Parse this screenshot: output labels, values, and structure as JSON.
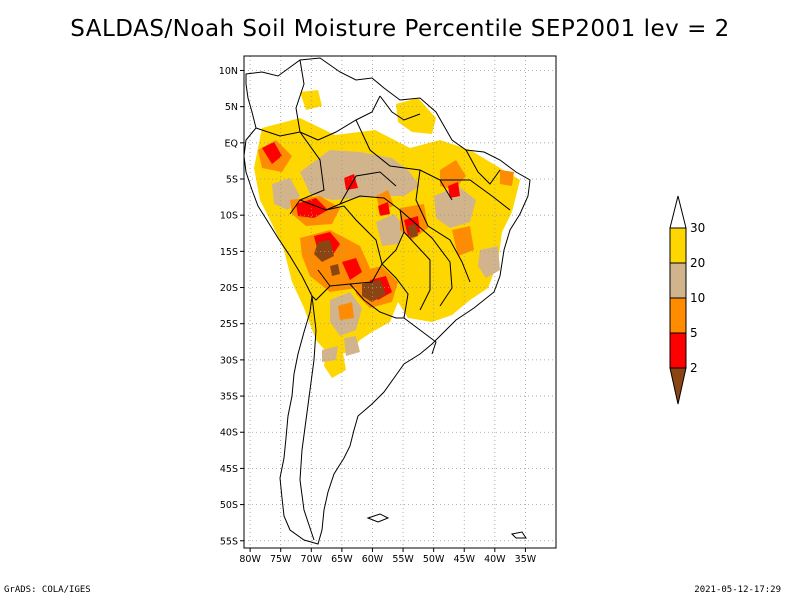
{
  "title": "SALDAS/Noah Soil Moisture Percentile SEP2001 lev = 2",
  "footer": {
    "left": "GrADS: COLA/IGES",
    "right": "2021-05-12-17:29"
  },
  "axes": {
    "lat_labels": [
      "10N",
      "5N",
      "EQ",
      "5S",
      "10S",
      "15S",
      "20S",
      "25S",
      "30S",
      "35S",
      "40S",
      "45S",
      "50S",
      "55S"
    ],
    "lat_values": [
      10,
      5,
      0,
      -5,
      -10,
      -15,
      -20,
      -25,
      -30,
      -35,
      -40,
      -45,
      -50,
      -55
    ],
    "lon_labels": [
      "80W",
      "75W",
      "70W",
      "65W",
      "60W",
      "55W",
      "50W",
      "45W",
      "40W",
      "35W"
    ],
    "lon_values": [
      -80,
      -75,
      -70,
      -65,
      -60,
      -55,
      -50,
      -45,
      -40,
      -35
    ],
    "lat_range": [
      -56,
      12
    ],
    "lon_range": [
      -81,
      -30
    ],
    "grid": "dotted"
  },
  "legend": {
    "orientation": "vertical",
    "placement": "right",
    "labels": [
      "2",
      "5",
      "10",
      "20",
      "30"
    ],
    "colors": [
      "#8B4513",
      "#FF0000",
      "#FF8C00",
      "#D2B48C",
      "#FFD700",
      "#FFFFFF"
    ]
  },
  "colors": {
    "brown": "#8B4513",
    "red": "#FF0000",
    "orange": "#FF8C00",
    "tan": "#D2B48C",
    "yellow": "#FFD700",
    "outline": "#000000"
  }
}
